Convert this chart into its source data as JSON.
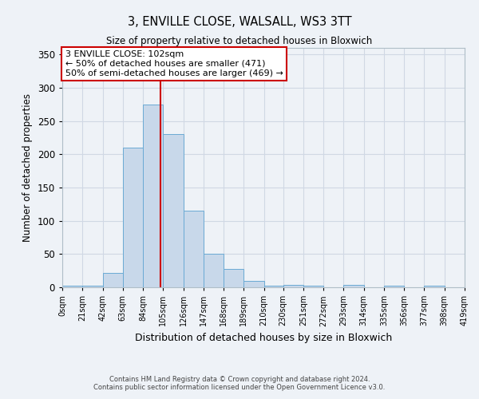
{
  "title1": "3, ENVILLE CLOSE, WALSALL, WS3 3TT",
  "title2": "Size of property relative to detached houses in Bloxwich",
  "xlabel": "Distribution of detached houses by size in Bloxwich",
  "ylabel": "Number of detached properties",
  "bin_edges": [
    0,
    21,
    42,
    63,
    84,
    105,
    126,
    147,
    168,
    189,
    210,
    230,
    251,
    272,
    293,
    314,
    335,
    356,
    377,
    398,
    419
  ],
  "bar_heights": [
    2,
    2,
    22,
    210,
    275,
    230,
    115,
    50,
    28,
    10,
    2,
    4,
    2,
    0,
    4,
    0,
    2,
    0,
    2,
    0
  ],
  "bar_color": "#c8d8ea",
  "bar_edge_color": "#6aaad4",
  "vline_x": 102,
  "vline_color": "#cc0000",
  "ylim": [
    0,
    360
  ],
  "yticks": [
    0,
    50,
    100,
    150,
    200,
    250,
    300,
    350
  ],
  "xtick_labels": [
    "0sqm",
    "21sqm",
    "42sqm",
    "63sqm",
    "84sqm",
    "105sqm",
    "126sqm",
    "147sqm",
    "168sqm",
    "189sqm",
    "210sqm",
    "230sqm",
    "251sqm",
    "272sqm",
    "293sqm",
    "314sqm",
    "335sqm",
    "356sqm",
    "377sqm",
    "398sqm",
    "419sqm"
  ],
  "annotation_text": "3 ENVILLE CLOSE: 102sqm\n← 50% of detached houses are smaller (471)\n50% of semi-detached houses are larger (469) →",
  "annotation_box_color": "#ffffff",
  "annotation_box_edgecolor": "#cc0000",
  "grid_color": "#d0d8e4",
  "bg_color": "#eef2f7",
  "footer_text1": "Contains HM Land Registry data © Crown copyright and database right 2024.",
  "footer_text2": "Contains public sector information licensed under the Open Government Licence v3.0."
}
